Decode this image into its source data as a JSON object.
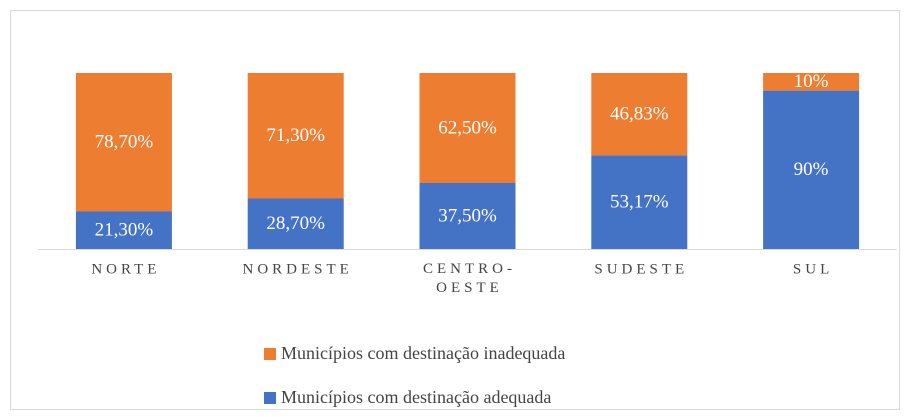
{
  "chart_data": {
    "type": "stacked_bar",
    "categories": [
      "NORTE",
      "NORDESTE",
      "CENTRO-OESTE",
      "SUDESTE",
      "SUL"
    ],
    "series": [
      {
        "name": "Municípios com destinação adequada",
        "color": "#4472C4",
        "values": [
          21.3,
          28.7,
          37.5,
          53.17,
          90
        ],
        "value_labels": [
          "21,30%",
          "28,70%",
          "37,50%",
          "53,17%",
          "90%"
        ]
      },
      {
        "name": "Municípios com destinação inadequada",
        "color": "#ED7D31",
        "values": [
          78.7,
          71.3,
          62.5,
          46.83,
          10
        ],
        "value_labels": [
          "78,70%",
          "71,30%",
          "62,50%",
          "46,83%",
          "10%"
        ]
      }
    ],
    "ylim": [
      0,
      100
    ]
  }
}
